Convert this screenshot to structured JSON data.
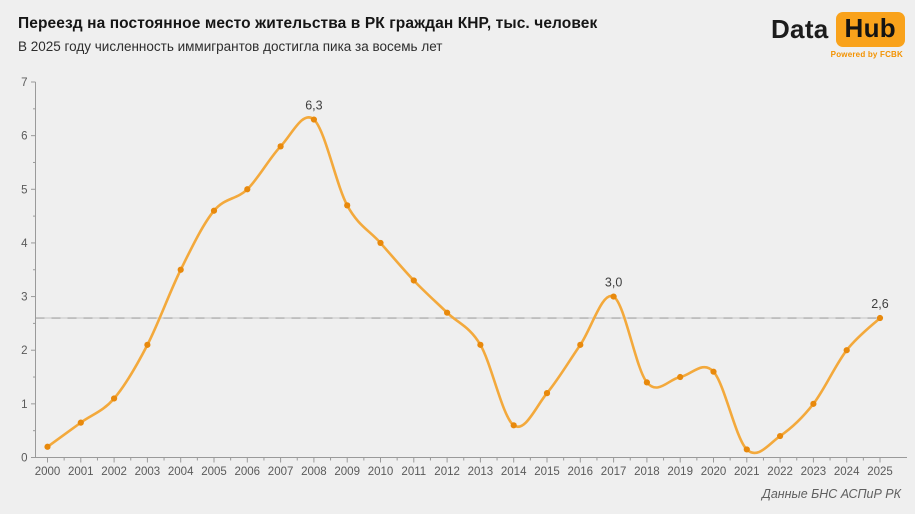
{
  "header": {
    "title": "Переезд на постоянное место жительства в РК граждан КНР, тыс. человек",
    "subtitle": "В 2025 году численность иммигрантов достигла пика за восемь лет"
  },
  "logo": {
    "part1": "Data",
    "part2": "Hub",
    "tagline": "Powered by FCBK",
    "badge_color": "#F9A21B"
  },
  "footer": {
    "source": "Данные БНС АСПиР РК"
  },
  "colors": {
    "background": "#efefef",
    "line": "#F3A93C",
    "dot": "#E8890C",
    "accent": "#F9A21B",
    "axis": "#9a9a9a",
    "tick_label": "#5a5a5a",
    "annotation": "#3f3f3f",
    "reference_light": "#cdcdcd",
    "reference_dark": "#a6a6a6"
  },
  "chart_data": {
    "type": "line",
    "title": "Переезд на постоянное место жительства в РК граждан КНР, тыс. человек",
    "xlabel": "",
    "ylabel": "тыс. человек",
    "x": [
      2000,
      2001,
      2002,
      2003,
      2004,
      2005,
      2006,
      2007,
      2008,
      2009,
      2010,
      2011,
      2012,
      2013,
      2014,
      2015,
      2016,
      2017,
      2018,
      2019,
      2020,
      2021,
      2022,
      2023,
      2024,
      2025
    ],
    "values": [
      0.2,
      0.65,
      1.1,
      2.1,
      3.5,
      4.6,
      5.0,
      5.8,
      6.3,
      4.7,
      4.0,
      3.3,
      2.7,
      2.1,
      0.6,
      1.2,
      2.1,
      3.0,
      1.4,
      1.5,
      1.6,
      0.15,
      0.4,
      1.0,
      2.0,
      2.6
    ],
    "ylim": [
      0,
      7
    ],
    "yticks": [
      0,
      1,
      2,
      3,
      4,
      5,
      6,
      7
    ],
    "grid": false,
    "legend": "none",
    "reference_line": 2.6,
    "annotations": [
      {
        "x": 2008,
        "label": "6,3"
      },
      {
        "x": 2017,
        "label": "3,0"
      },
      {
        "x": 2025,
        "label": "2,6"
      }
    ]
  }
}
